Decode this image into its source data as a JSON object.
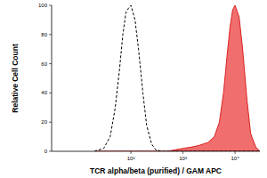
{
  "chart_data": {
    "type": "line",
    "x_label": "TCR alpha/beta (purified) / GAM APC",
    "y_label": "Relative Cell Count",
    "log": "x",
    "x": [
      20,
      30,
      40,
      50,
      60,
      70,
      80,
      90,
      100,
      120,
      140,
      170,
      200,
      250,
      300,
      400,
      500,
      700,
      1000,
      1500,
      2000,
      3000,
      4000,
      5000,
      6000,
      7000,
      8000,
      9000,
      10000,
      12000,
      14000,
      17000,
      20000,
      25000,
      30000
    ],
    "series": [
      {
        "color": "#000000",
        "line_style": "dashed",
        "values": [
          0,
          2,
          10,
          30,
          55,
          80,
          95,
          98,
          100,
          90,
          70,
          40,
          18,
          5,
          1,
          0,
          0,
          0,
          0,
          0,
          0,
          0,
          0,
          0,
          0,
          0,
          0,
          0,
          0,
          0,
          0,
          0,
          0,
          0,
          0
        ]
      },
      {
        "color": "#f06e6e",
        "type": "area",
        "values": [
          0,
          0,
          0,
          0,
          0,
          0,
          0,
          0,
          0,
          0,
          0,
          0,
          0,
          0,
          0,
          0,
          0,
          1,
          2,
          3,
          4,
          6,
          10,
          20,
          40,
          65,
          85,
          97,
          100,
          92,
          70,
          35,
          12,
          3,
          0
        ]
      }
    ],
    "xlim": [
      3,
      30000
    ],
    "xticks": [
      {
        "value": 100,
        "label": "10²"
      },
      {
        "value": 1000,
        "label": "10³"
      },
      {
        "value": 10000,
        "label": "10⁴"
      }
    ],
    "ylim": [
      0,
      100
    ],
    "yticks": [
      0,
      20,
      40,
      60,
      80,
      100
    ],
    "grid": false
  }
}
